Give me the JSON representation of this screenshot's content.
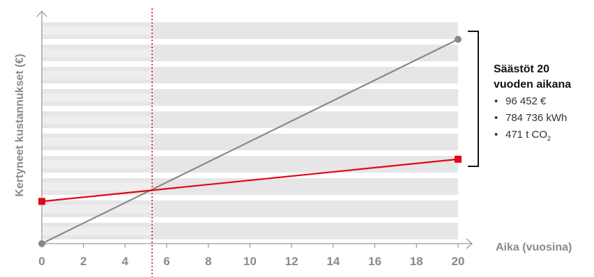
{
  "chart_data": {
    "type": "line",
    "xlabel": "Aika (vuosina)",
    "ylabel": "Kertyneet kustannukset  (€)",
    "xlim": [
      0,
      20
    ],
    "ylim": [
      0,
      100
    ],
    "xticks": [
      "0",
      "2",
      "4",
      "6",
      "8",
      "10",
      "12",
      "14",
      "16",
      "18",
      "20"
    ],
    "crossover_x": 5.3,
    "grid": true,
    "series": [
      {
        "color": "#888888",
        "marker": "circle",
        "x": [
          0,
          20
        ],
        "y": [
          0,
          92
        ]
      },
      {
        "color": "#e30613",
        "marker": "square",
        "x": [
          0,
          20
        ],
        "y": [
          19,
          38
        ]
      }
    ],
    "savings": {
      "title_line1": "Säästöt 20",
      "title_line2": "vuoden aikana",
      "bullet": "•",
      "items": [
        {
          "text": "96 452 €"
        },
        {
          "text": "784 736 kWh"
        },
        {
          "text": "471 t CO",
          "sub": "2"
        }
      ]
    },
    "colors": {
      "band": "#e6e6e6",
      "band_light": "#eeeeee",
      "axis": "#9a9a9a",
      "crossover": "#e30613",
      "bracket": "#111111"
    }
  }
}
